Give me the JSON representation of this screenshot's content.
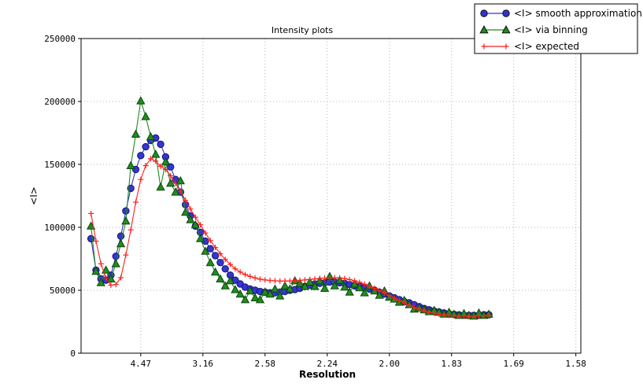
{
  "title": "Intensity plots",
  "axes": {
    "x_label": "Resolution",
    "y_label": "<I>",
    "y_ticks": [
      {
        "v": 0,
        "label": "0"
      },
      {
        "v": 50000,
        "label": "50000"
      },
      {
        "v": 100000,
        "label": "100000"
      },
      {
        "v": 150000,
        "label": "150000"
      },
      {
        "v": 200000,
        "label": "200000"
      },
      {
        "v": 250000,
        "label": "250000"
      }
    ]
  },
  "legend": {
    "items": [
      {
        "label": "<I> smooth approximation",
        "marker": "circle",
        "color": "#3333cc"
      },
      {
        "label": "<I> via binning",
        "marker": "triangle",
        "color": "#1f8b1f"
      },
      {
        "label": "<I> expected",
        "marker": "plus",
        "color": "#ff1e1e"
      }
    ]
  },
  "chart_data": {
    "type": "line",
    "title": "Intensity plots",
    "xlabel": "Resolution",
    "ylabel": "<I>",
    "x_axis_note": "x axis is linear in 1/d^2; tick labels give resolution d in Angstrom",
    "x_tick_labels": [
      "4.47",
      "3.16",
      "2.58",
      "2.24",
      "2.00",
      "1.83",
      "1.69",
      "1.58"
    ],
    "x_tick_positions_inv_d2": [
      0.05,
      0.1,
      0.15,
      0.2,
      0.25,
      0.3,
      0.35,
      0.4
    ],
    "xlim_inv_d2": [
      0.002,
      0.404
    ],
    "ylim": [
      0,
      250000
    ],
    "grid": true,
    "legend_position": "top-right",
    "s_start": 0.01,
    "s_step": 0.004,
    "series": [
      {
        "name": "<I> smooth approximation",
        "marker": "circle",
        "line_color": "#3333cc",
        "fill_color": "#3535cf",
        "edge_color": "#15157a",
        "values": [
          91000,
          66000,
          59000,
          58000,
          62000,
          77000,
          93000,
          113000,
          131000,
          146000,
          157000,
          164000,
          169000,
          171000,
          166000,
          156000,
          148000,
          138000,
          128000,
          118000,
          109000,
          101000,
          96000,
          89000,
          83000,
          77500,
          72000,
          67000,
          62000,
          58000,
          55000,
          52500,
          51000,
          50000,
          49000,
          48500,
          48000,
          48000,
          48500,
          49000,
          50000,
          50500,
          51500,
          53000,
          54000,
          55000,
          55500,
          56000,
          56500,
          56500,
          56000,
          55500,
          54500,
          53500,
          53000,
          52000,
          51000,
          50000,
          48500,
          47000,
          45500,
          44000,
          42500,
          41000,
          40000,
          38500,
          37000,
          35500,
          34500,
          33500,
          32700,
          32000,
          31300,
          30800,
          30400,
          30100,
          30000,
          30000,
          30200,
          30500,
          30500
        ]
      },
      {
        "name": "<I> via binning",
        "marker": "triangle",
        "line_color": "#1f8b1f",
        "fill_color": "#228b22",
        "edge_color": "#0b470b",
        "values": [
          101000,
          65000,
          56000,
          66000,
          59000,
          71000,
          87000,
          105000,
          149000,
          174000,
          200500,
          188000,
          172000,
          158000,
          132000,
          152000,
          135000,
          128000,
          137000,
          112000,
          106000,
          102000,
          91000,
          81000,
          72000,
          64500,
          59000,
          53500,
          57500,
          50500,
          47000,
          42500,
          49500,
          44000,
          42500,
          48500,
          47000,
          51000,
          45500,
          53500,
          51000,
          57500,
          55500,
          53000,
          56500,
          53000,
          57500,
          51500,
          61000,
          53500,
          58000,
          52500,
          48500,
          55000,
          52000,
          48000,
          53500,
          49500,
          46000,
          49500,
          44500,
          43000,
          40500,
          42000,
          38500,
          35000,
          36000,
          34500,
          33000,
          34000,
          32500,
          31000,
          32500,
          31000,
          30000,
          31500,
          30000,
          29500,
          32000,
          30000,
          31000
        ]
      },
      {
        "name": "<I> expected",
        "marker": "plus",
        "line_color": "#ff1e1e",
        "fill_color": "#ff1e1e",
        "edge_color": "#ff1e1e",
        "values": [
          111000,
          89000,
          71000,
          59500,
          54000,
          54500,
          60000,
          78000,
          98000,
          120000,
          138000,
          149000,
          154500,
          152500,
          148500,
          146000,
          141000,
          135000,
          128500,
          121500,
          114500,
          108000,
          102000,
          95500,
          89500,
          84000,
          79000,
          74500,
          70500,
          67000,
          64500,
          62500,
          61000,
          59800,
          58800,
          58200,
          57800,
          57500,
          57300,
          57300,
          57400,
          57600,
          57900,
          58200,
          58600,
          59000,
          59400,
          59700,
          59900,
          60000,
          59800,
          59300,
          58500,
          57500,
          56300,
          54800,
          53200,
          51500,
          49700,
          47800,
          45800,
          43800,
          41800,
          39900,
          38100,
          36400,
          34900,
          33600,
          32500,
          31600,
          30900,
          30400,
          30000,
          29700,
          29500,
          29400,
          29400,
          29500,
          29600,
          29800,
          30000
        ]
      }
    ]
  },
  "style": {
    "grid_color": "#b4b4b4",
    "spine_color": "#000000",
    "background": "#ffffff"
  }
}
